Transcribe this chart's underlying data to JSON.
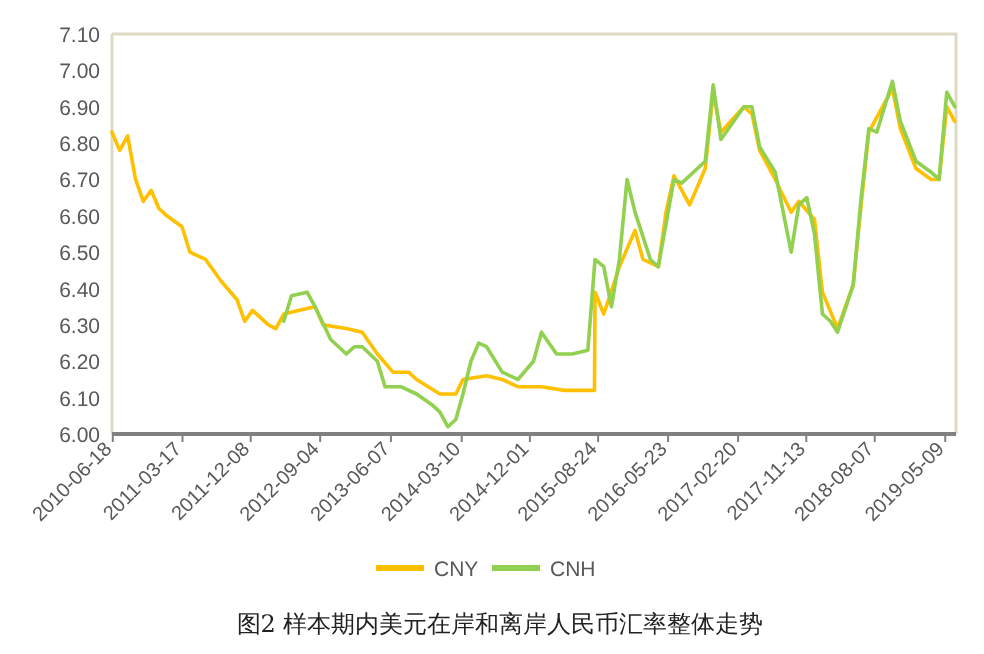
{
  "chart_data": {
    "type": "line",
    "title": "图2  样本期内美元在岸和离岸人民币汇率整体走势",
    "xlim": [
      "2010-06-15",
      "2019-06-20"
    ],
    "xticks": [
      "2010-06-18",
      "2011-03-17",
      "2011-12-08",
      "2012-09-04",
      "2013-06-07",
      "2014-03-10",
      "2014-12-01",
      "2015-08-24",
      "2016-05-23",
      "2017-02-20",
      "2017-11-13",
      "2018-08-07",
      "2019-05-09"
    ],
    "ylim": [
      6.0,
      7.1
    ],
    "yticks": [
      {
        "value": 6.0,
        "label": "6.00"
      },
      {
        "value": 6.1,
        "label": "6.10"
      },
      {
        "value": 6.2,
        "label": "6.20"
      },
      {
        "value": 6.3,
        "label": "6.30"
      },
      {
        "value": 6.4,
        "label": "6.40"
      },
      {
        "value": 6.5,
        "label": "6.50"
      },
      {
        "value": 6.6,
        "label": "6.60"
      },
      {
        "value": 6.7,
        "label": "6.70"
      },
      {
        "value": 6.8,
        "label": "6.80"
      },
      {
        "value": 6.9,
        "label": "6.90"
      },
      {
        "value": 7.0,
        "label": "7.00"
      },
      {
        "value": 7.1,
        "label": "7.10"
      }
    ],
    "grid": false,
    "legend": "bottom",
    "marker": "none",
    "line_style": "solid",
    "series": [
      {
        "name": "CNY",
        "color": "#ffc000",
        "x": [
          "2010-06-15",
          "2010-07-15",
          "2010-08-15",
          "2010-09-15",
          "2010-10-15",
          "2010-11-15",
          "2010-12-15",
          "2011-01-15",
          "2011-03-15",
          "2011-04-15",
          "2011-06-15",
          "2011-08-15",
          "2011-10-15",
          "2011-11-15",
          "2011-12-15",
          "2012-02-15",
          "2012-03-15",
          "2012-04-15",
          "2012-06-15",
          "2012-08-15",
          "2012-09-15",
          "2012-12-15",
          "2013-02-15",
          "2013-04-15",
          "2013-06-15",
          "2013-08-15",
          "2013-09-15",
          "2013-12-15",
          "2014-02-15",
          "2014-03-15",
          "2014-06-15",
          "2014-08-15",
          "2014-10-15",
          "2015-01-15",
          "2015-04-15",
          "2015-07-15",
          "2015-08-10",
          "2015-08-12",
          "2015-09-15",
          "2015-11-15",
          "2016-01-15",
          "2016-02-15",
          "2016-04-15",
          "2016-05-15",
          "2016-06-15",
          "2016-08-15",
          "2016-10-15",
          "2016-11-15",
          "2016-12-15",
          "2017-03-15",
          "2017-04-15",
          "2017-05-15",
          "2017-07-15",
          "2017-09-15",
          "2017-10-15",
          "2017-12-15",
          "2018-01-15",
          "2018-03-15",
          "2018-05-15",
          "2018-06-15",
          "2018-07-15",
          "2018-10-15",
          "2018-11-15",
          "2019-01-15",
          "2019-03-15",
          "2019-04-15",
          "2019-05-15",
          "2019-06-15"
        ],
        "values": [
          6.83,
          6.78,
          6.82,
          6.7,
          6.64,
          6.67,
          6.62,
          6.6,
          6.57,
          6.5,
          6.48,
          6.42,
          6.37,
          6.31,
          6.34,
          6.3,
          6.29,
          6.33,
          6.34,
          6.35,
          6.3,
          6.29,
          6.28,
          6.22,
          6.17,
          6.17,
          6.15,
          6.11,
          6.11,
          6.15,
          6.16,
          6.15,
          6.13,
          6.13,
          6.12,
          6.12,
          6.12,
          6.39,
          6.33,
          6.46,
          6.56,
          6.48,
          6.46,
          6.61,
          6.71,
          6.63,
          6.73,
          6.94,
          6.83,
          6.9,
          6.88,
          6.78,
          6.7,
          6.61,
          6.64,
          6.59,
          6.39,
          6.29,
          6.41,
          6.63,
          6.83,
          6.95,
          6.84,
          6.73,
          6.7,
          6.7,
          6.9,
          6.86
        ]
      },
      {
        "name": "CNH",
        "color": "#92d050",
        "x": [
          "2012-04-15",
          "2012-05-15",
          "2012-07-15",
          "2012-08-15",
          "2012-10-15",
          "2012-12-15",
          "2013-01-15",
          "2013-02-15",
          "2013-04-15",
          "2013-05-15",
          "2013-07-15",
          "2013-09-15",
          "2013-11-15",
          "2013-12-15",
          "2014-01-15",
          "2014-02-15",
          "2014-03-15",
          "2014-04-15",
          "2014-05-15",
          "2014-06-15",
          "2014-08-15",
          "2014-10-15",
          "2014-12-15",
          "2015-01-15",
          "2015-03-15",
          "2015-05-15",
          "2015-07-15",
          "2015-08-12",
          "2015-09-15",
          "2015-10-15",
          "2015-11-15",
          "2015-12-15",
          "2016-01-15",
          "2016-03-15",
          "2016-04-15",
          "2016-06-15",
          "2016-07-15",
          "2016-10-15",
          "2016-11-15",
          "2016-12-15",
          "2017-03-15",
          "2017-04-15",
          "2017-05-15",
          "2017-07-15",
          "2017-09-15",
          "2017-10-15",
          "2017-11-15",
          "2017-12-15",
          "2018-01-15",
          "2018-02-15",
          "2018-03-15",
          "2018-05-15",
          "2018-06-15",
          "2018-07-15",
          "2018-08-15",
          "2018-10-15",
          "2018-11-15",
          "2019-01-15",
          "2019-03-15",
          "2019-04-15",
          "2019-05-15",
          "2019-06-15"
        ],
        "values": [
          6.31,
          6.38,
          6.39,
          6.35,
          6.26,
          6.22,
          6.24,
          6.24,
          6.2,
          6.13,
          6.13,
          6.11,
          6.08,
          6.06,
          6.02,
          6.04,
          6.11,
          6.2,
          6.25,
          6.24,
          6.17,
          6.15,
          6.2,
          6.28,
          6.22,
          6.22,
          6.23,
          6.48,
          6.46,
          6.35,
          6.48,
          6.7,
          6.61,
          6.48,
          6.46,
          6.7,
          6.69,
          6.75,
          6.96,
          6.81,
          6.9,
          6.9,
          6.79,
          6.72,
          6.5,
          6.63,
          6.65,
          6.55,
          6.33,
          6.31,
          6.28,
          6.41,
          6.65,
          6.84,
          6.83,
          6.97,
          6.86,
          6.75,
          6.72,
          6.7,
          6.94,
          6.9
        ]
      }
    ]
  }
}
